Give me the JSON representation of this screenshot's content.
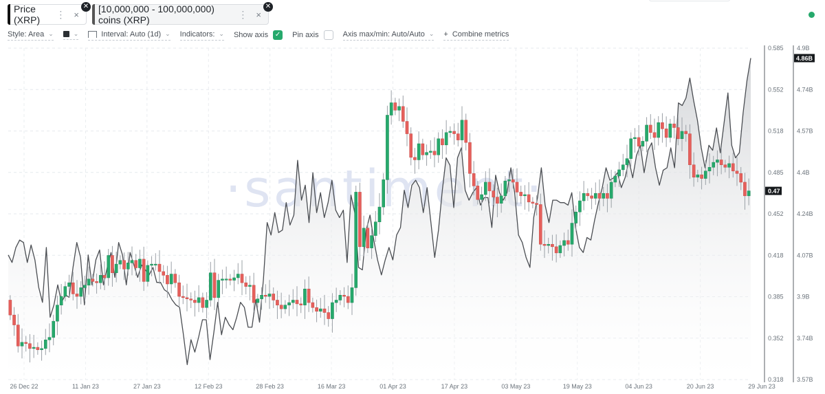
{
  "tabs": [
    {
      "label": "Price (XRP)",
      "color": "#111111"
    },
    {
      "label": "[10,000,000 - 100,000,000) coins (XRP)",
      "color": "#555555"
    }
  ],
  "toolbar": {
    "style_label": "Style: Area",
    "interval_label": "Interval: Auto (1d)",
    "indicators_label": "Indicators:",
    "show_axis_label": "Show axis",
    "show_axis_checked": true,
    "pin_axis_label": "Pin axis",
    "pin_axis_checked": false,
    "axis_maxmin_label": "Axis max/min: Auto/Auto",
    "combine_label": "Combine metrics"
  },
  "watermark": "·santiment·",
  "chart_data": {
    "type": "candlestick+area",
    "x_labels": [
      "26 Dec 22",
      "11 Jan 23",
      "27 Jan 23",
      "12 Feb 23",
      "28 Feb 23",
      "16 Mar 23",
      "01 Apr 23",
      "17 Apr 23",
      "03 May 23",
      "19 May 23",
      "04 Jun 23",
      "20 Jun 23",
      "29 Jun 23"
    ],
    "price_axis": {
      "ticks": [
        "0.585",
        "0.552",
        "0.518",
        "0.485",
        "0.452",
        "0.418",
        "0.385",
        "0.352",
        "0.318"
      ],
      "min": 0.318,
      "max": 0.585,
      "current_label": "0.47",
      "current": 0.47
    },
    "supply_axis": {
      "ticks": [
        "4.9B",
        "4.74B",
        "4.57B",
        "4.4B",
        "4.24B",
        "4.07B",
        "3.9B",
        "3.74B",
        "3.57B"
      ],
      "min": 3.57,
      "max": 4.9,
      "current_label": "4.86B",
      "current": 4.86
    },
    "colors": {
      "up": "#26a96c",
      "down": "#e5605c",
      "line": "#4a4d52",
      "area_top": "#d7d9dc"
    },
    "candles_close": [
      0.37,
      0.362,
      0.345,
      0.348,
      0.347,
      0.343,
      0.344,
      0.342,
      0.343,
      0.35,
      0.352,
      0.365,
      0.378,
      0.385,
      0.393,
      0.396,
      0.387,
      0.385,
      0.392,
      0.394,
      0.399,
      0.397,
      0.396,
      0.402,
      0.4,
      0.418,
      0.404,
      0.411,
      0.414,
      0.407,
      0.412,
      0.414,
      0.408,
      0.415,
      0.397,
      0.41,
      0.411,
      0.411,
      0.405,
      0.402,
      0.395,
      0.403,
      0.396,
      0.385,
      0.384,
      0.383,
      0.382,
      0.38,
      0.384,
      0.376,
      0.382,
      0.404,
      0.384,
      0.398,
      0.399,
      0.399,
      0.398,
      0.4,
      0.403,
      0.396,
      0.393,
      0.394,
      0.38,
      0.383,
      0.386,
      0.385,
      0.387,
      0.382,
      0.378,
      0.375,
      0.378,
      0.38,
      0.382,
      0.379,
      0.378,
      0.391,
      0.38,
      0.376,
      0.373,
      0.375,
      0.372,
      0.367,
      0.38,
      0.382,
      0.386,
      0.385,
      0.38,
      0.392,
      0.469,
      0.425,
      0.44,
      0.424,
      0.434,
      0.445,
      0.457,
      0.479,
      0.531,
      0.541,
      0.535,
      0.538,
      0.526,
      0.516,
      0.497,
      0.495,
      0.508,
      0.499,
      0.501,
      0.502,
      0.499,
      0.512,
      0.507,
      0.517,
      0.518,
      0.516,
      0.511,
      0.527,
      0.509,
      0.484,
      0.474,
      0.463,
      0.467,
      0.477,
      0.47,
      0.465,
      0.46,
      0.466,
      0.478,
      0.479,
      0.477,
      0.469,
      0.466,
      0.467,
      0.461,
      0.46,
      0.459,
      0.427,
      0.426,
      0.427,
      0.425,
      0.42,
      0.426,
      0.43,
      0.427,
      0.444,
      0.453,
      0.462,
      0.468,
      0.466,
      0.464,
      0.468,
      0.464,
      0.468,
      0.464,
      0.477,
      0.482,
      0.487,
      0.491,
      0.496,
      0.512,
      0.513,
      0.506,
      0.51,
      0.523,
      0.517,
      0.513,
      0.525,
      0.52,
      0.513,
      0.524,
      0.521,
      0.512,
      0.518,
      0.516,
      0.491,
      0.481,
      0.483,
      0.48,
      0.486,
      0.489,
      0.493,
      0.495,
      0.491,
      0.489,
      0.492,
      0.486,
      0.484,
      0.477,
      0.466,
      0.47
    ],
    "supply_line": [
      4.07,
      4.04,
      4.1,
      4.13,
      4.12,
      4.04,
      4.11,
      4.05,
      3.94,
      3.88,
      4.1,
      3.82,
      3.87,
      3.95,
      3.88,
      3.91,
      3.9,
      4.02,
      4.12,
      4.06,
      3.87,
      4.07,
      3.95,
      4.05,
      4.09,
      3.95,
      4.02,
      4.08,
      3.98,
      4.12,
      4.07,
      3.95,
      4.08,
      4.03,
      3.98,
      4.03,
      4.01,
      3.99,
      4.02,
      3.96,
      3.96,
      3.93,
      3.92,
      3.89,
      3.87,
      3.86,
      3.75,
      3.63,
      3.73,
      3.68,
      3.74,
      3.81,
      3.81,
      3.65,
      3.76,
      3.88,
      3.75,
      3.82,
      3.79,
      3.77,
      3.82,
      3.88,
      3.86,
      3.78,
      3.78,
      3.89,
      3.8,
      3.97,
      4.2,
      4.15,
      4.24,
      4.16,
      4.17,
      4.28,
      4.19,
      4.23,
      4.45,
      4.29,
      4.35,
      4.2,
      4.4,
      4.24,
      4.32,
      4.22,
      4.28,
      4.37,
      4.25,
      4.22,
      4.25,
      4.04,
      4.31,
      4.24,
      4.02,
      4.01,
      4.17,
      4.23,
      4.13,
      4.05,
      3.99,
      4.05,
      4.1,
      4.05,
      4.15,
      4.18,
      4.33,
      4.26,
      4.35,
      4.37,
      4.34,
      4.24,
      4.34,
      4.2,
      4.06,
      4.17,
      4.33,
      4.46,
      4.43,
      4.26,
      4.46,
      4.5,
      4.33,
      4.29,
      4.32,
      4.34,
      4.27,
      4.3,
      4.3,
      4.18,
      4.39,
      4.32,
      4.29,
      4.32,
      4.42,
      4.32,
      4.15,
      4.12,
      4.06,
      4.02,
      4.22,
      4.3,
      4.42,
      4.27,
      4.2,
      4.29,
      4.29,
      4.28,
      4.28,
      4.27,
      4.32,
      4.18,
      4.1,
      4.08,
      4.14,
      4.13,
      4.21,
      4.28,
      4.34,
      4.42,
      4.37,
      4.38,
      4.4,
      4.34,
      4.38,
      4.45,
      4.38,
      4.47,
      4.51,
      4.4,
      4.49,
      4.52,
      4.42,
      4.35,
      4.41,
      4.42,
      4.5,
      4.42,
      4.68,
      4.67,
      4.7,
      4.78,
      4.69,
      4.61,
      4.5,
      4.42,
      4.51,
      4.49,
      4.58,
      4.48,
      4.6,
      4.72,
      4.51,
      4.46,
      4.48,
      4.64,
      4.77,
      4.86
    ]
  }
}
